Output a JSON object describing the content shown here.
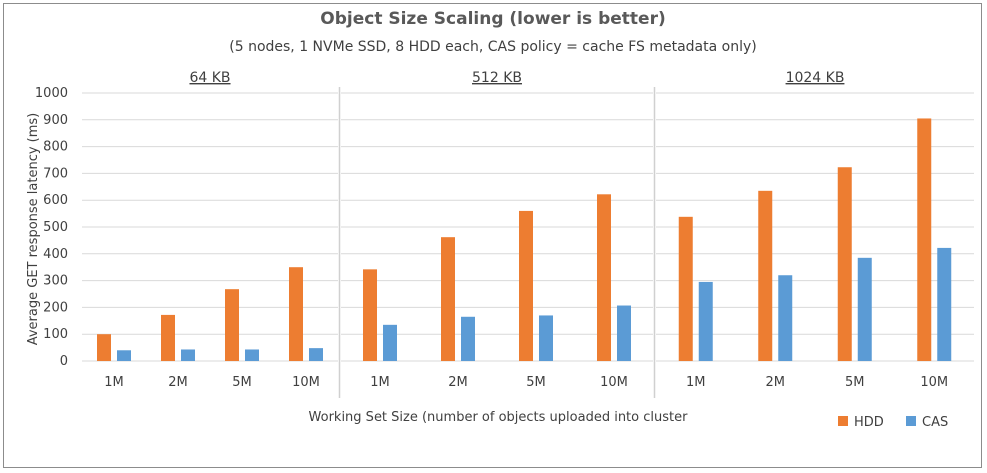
{
  "chart_data": {
    "type": "bar",
    "title": "Object Size Scaling (lower is better)",
    "subtitle": "(5 nodes, 1 NVMe SSD, 8 HDD each, CAS policy = cache FS metadata only)",
    "xlabel": "Working Set Size (number of objects uploaded into cluster",
    "ylabel": "Average GET response latency (ms)",
    "ylim": [
      0,
      1000
    ],
    "yticks": [
      0,
      100,
      200,
      300,
      400,
      500,
      600,
      700,
      800,
      900,
      1000
    ],
    "grid": true,
    "legend_position": "bottom-right",
    "categories": [
      "1M",
      "2M",
      "5M",
      "10M"
    ],
    "series_colors": {
      "HDD": "#ed7d31",
      "CAS": "#5b9bd5"
    },
    "panels": [
      {
        "title": "64 KB",
        "series": [
          {
            "name": "HDD",
            "values": [
              100,
              172,
              268,
              350
            ]
          },
          {
            "name": "CAS",
            "values": [
              40,
              43,
              43,
              48
            ]
          }
        ]
      },
      {
        "title": "512 KB",
        "series": [
          {
            "name": "HDD",
            "values": [
              342,
              462,
              560,
              622
            ]
          },
          {
            "name": "CAS",
            "values": [
              135,
              165,
              170,
              207
            ]
          }
        ]
      },
      {
        "title": "1024 KB",
        "series": [
          {
            "name": "HDD",
            "values": [
              538,
              635,
              723,
              905
            ]
          },
          {
            "name": "CAS",
            "values": [
              295,
              320,
              385,
              422
            ]
          }
        ]
      }
    ]
  }
}
